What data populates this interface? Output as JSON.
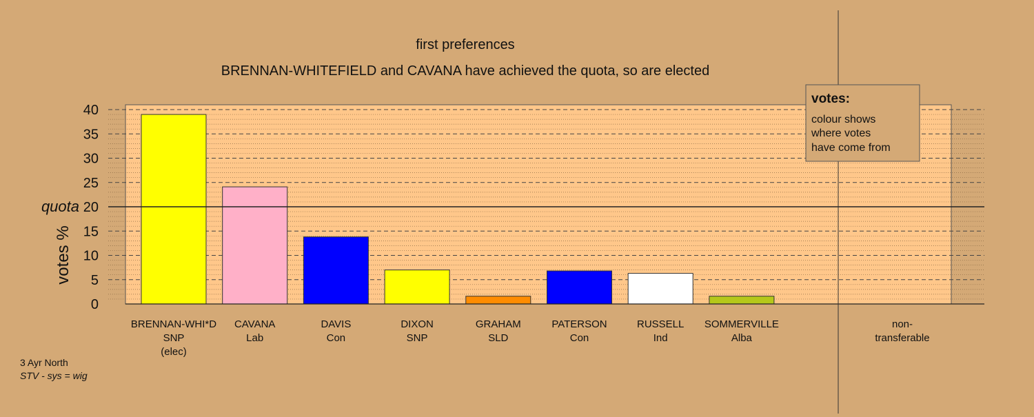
{
  "colors": {
    "background": "#d4a976",
    "plot_area": "#ffc78a",
    "snp": "#ffff00",
    "lab": "#ffb0c8",
    "con": "#0000ff",
    "sld": "#ff8c00",
    "ind": "#ffffff",
    "alba": "#b5c81a"
  },
  "chart_data": {
    "type": "bar",
    "title": "first preferences",
    "subtitle": "BRENNAN-WHITEFIELD and CAVANA have achieved the quota, so are elected",
    "ylabel": "votes %",
    "ylim": [
      0,
      40
    ],
    "yticks": [
      "0",
      "5",
      "10",
      "15",
      "20",
      "25",
      "30",
      "35",
      "40"
    ],
    "quota_label": "quota",
    "quota_value": 20,
    "grid": true,
    "categories": [
      {
        "name": "BRENNAN-WHI*D",
        "party": "SNP",
        "status": "(elec)",
        "value": 39.0,
        "color": "#ffff00"
      },
      {
        "name": "CAVANA",
        "party": "Lab",
        "status": "",
        "value": 24.1,
        "color": "#ffb0c8"
      },
      {
        "name": "DAVIS",
        "party": "Con",
        "status": "",
        "value": 13.8,
        "color": "#0000ff"
      },
      {
        "name": "DIXON",
        "party": "SNP",
        "status": "",
        "value": 7.0,
        "color": "#ffff00"
      },
      {
        "name": "GRAHAM",
        "party": "SLD",
        "status": "",
        "value": 1.6,
        "color": "#ff8c00"
      },
      {
        "name": "PATERSON",
        "party": "Con",
        "status": "",
        "value": 6.8,
        "color": "#0000ff"
      },
      {
        "name": "RUSSELL",
        "party": "Ind",
        "status": "",
        "value": 6.3,
        "color": "#ffffff"
      },
      {
        "name": "SOMMERVILLE",
        "party": "Alba",
        "status": "",
        "value": 1.6,
        "color": "#b5c81a"
      }
    ],
    "non_transferable": {
      "label_line1": "non-",
      "label_line2": "transferable",
      "value": 0
    },
    "legend": {
      "placement": "top-right",
      "title": "votes:",
      "lines": [
        "colour shows",
        "where votes",
        "have come from"
      ]
    },
    "footer": {
      "line1": "3 Ayr North",
      "line2": "STV - sys = wig"
    }
  }
}
